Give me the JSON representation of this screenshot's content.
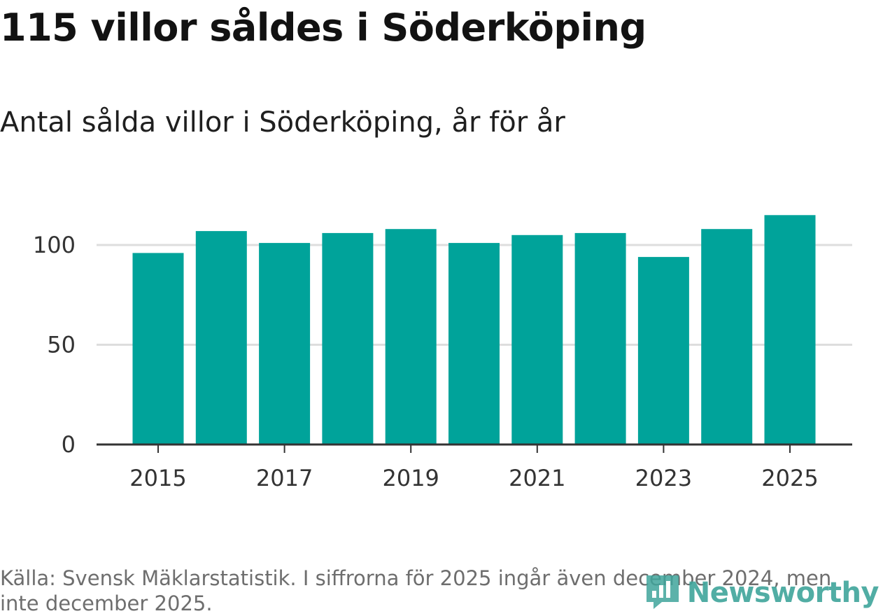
{
  "colors": {
    "bar": "#00a39a",
    "grid": "#dddddd",
    "axis": "#333333",
    "brand": "#3fa59b"
  },
  "brand": {
    "icon": "bar-chart-speech-bubble-icon",
    "name": "Newsworthy"
  },
  "source_text": "Källa: Svensk Mäklarstatistik. I siffrorna för 2025 ingår även december 2024, men inte december 2025.",
  "chart_data": {
    "type": "bar",
    "title": "115 villor såldes i Söderköping",
    "subtitle": "Antal sålda villor i Söderköping, år för år",
    "xlabel": "",
    "ylabel": "",
    "categories": [
      "2015",
      "2016",
      "2017",
      "2018",
      "2019",
      "2020",
      "2021",
      "2022",
      "2023",
      "2024",
      "2025"
    ],
    "values": [
      96,
      107,
      101,
      106,
      108,
      101,
      105,
      106,
      94,
      108,
      115
    ],
    "ylim": [
      0,
      120
    ],
    "yticks": [
      0,
      50,
      100
    ],
    "xtick_labels": [
      "2015",
      "2017",
      "2019",
      "2021",
      "2023",
      "2025"
    ],
    "grid": "horizontal",
    "legend": "none"
  }
}
